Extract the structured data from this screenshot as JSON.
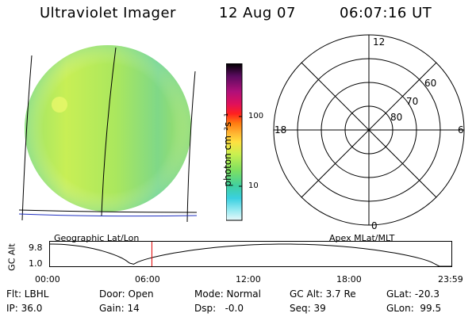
{
  "header": {
    "instrument": "Ultraviolet Imager",
    "date": "12 Aug 07",
    "time": "06:07:16 UT"
  },
  "image_panel": {
    "caption": "Geographic Lat/Lon",
    "band_color_stops": [
      "#9be36a",
      "#c8ef55",
      "#aae75e",
      "#7fd887",
      "#a4e25f"
    ]
  },
  "colorbar": {
    "unit_label": "photon cm⁻²s⁻¹",
    "ticks": [
      "100",
      "10"
    ],
    "colors": [
      "#000000",
      "#5a0b5f",
      "#b0107a",
      "#e0105a",
      "#ff2020",
      "#ff7a10",
      "#ffb030",
      "#ffe040",
      "#c8f050",
      "#7fe060",
      "#40d0a0",
      "#3ad0e0",
      "#90e8f0",
      "#e8f8fa"
    ]
  },
  "polar": {
    "caption": "Apex MLat/MLT",
    "mlt_labels": {
      "top": "12",
      "left": "18",
      "right": "6",
      "bottom": "0"
    },
    "lat_labels": [
      "60",
      "70",
      "80"
    ]
  },
  "orbit": {
    "ylabel": "GC Alt",
    "ymax": "9.8",
    "ymin": "1.0",
    "xticks": [
      "00:00",
      "06:00",
      "12:00",
      "18:00",
      "23:59"
    ],
    "current_time_fraction": 0.2553
  },
  "status": {
    "flt": "Flt: LBHL",
    "ip": "IP: 36.0",
    "door": "Door: Open",
    "gain": "Gain: 14",
    "mode": "Mode: Normal",
    "dsp": "Dsp:   -0.0",
    "gcalt": "GC Alt: 3.7 Re",
    "seq": "Seq: 39",
    "glat": "GLat: -20.3",
    "glon": "GLon:  99.5"
  }
}
